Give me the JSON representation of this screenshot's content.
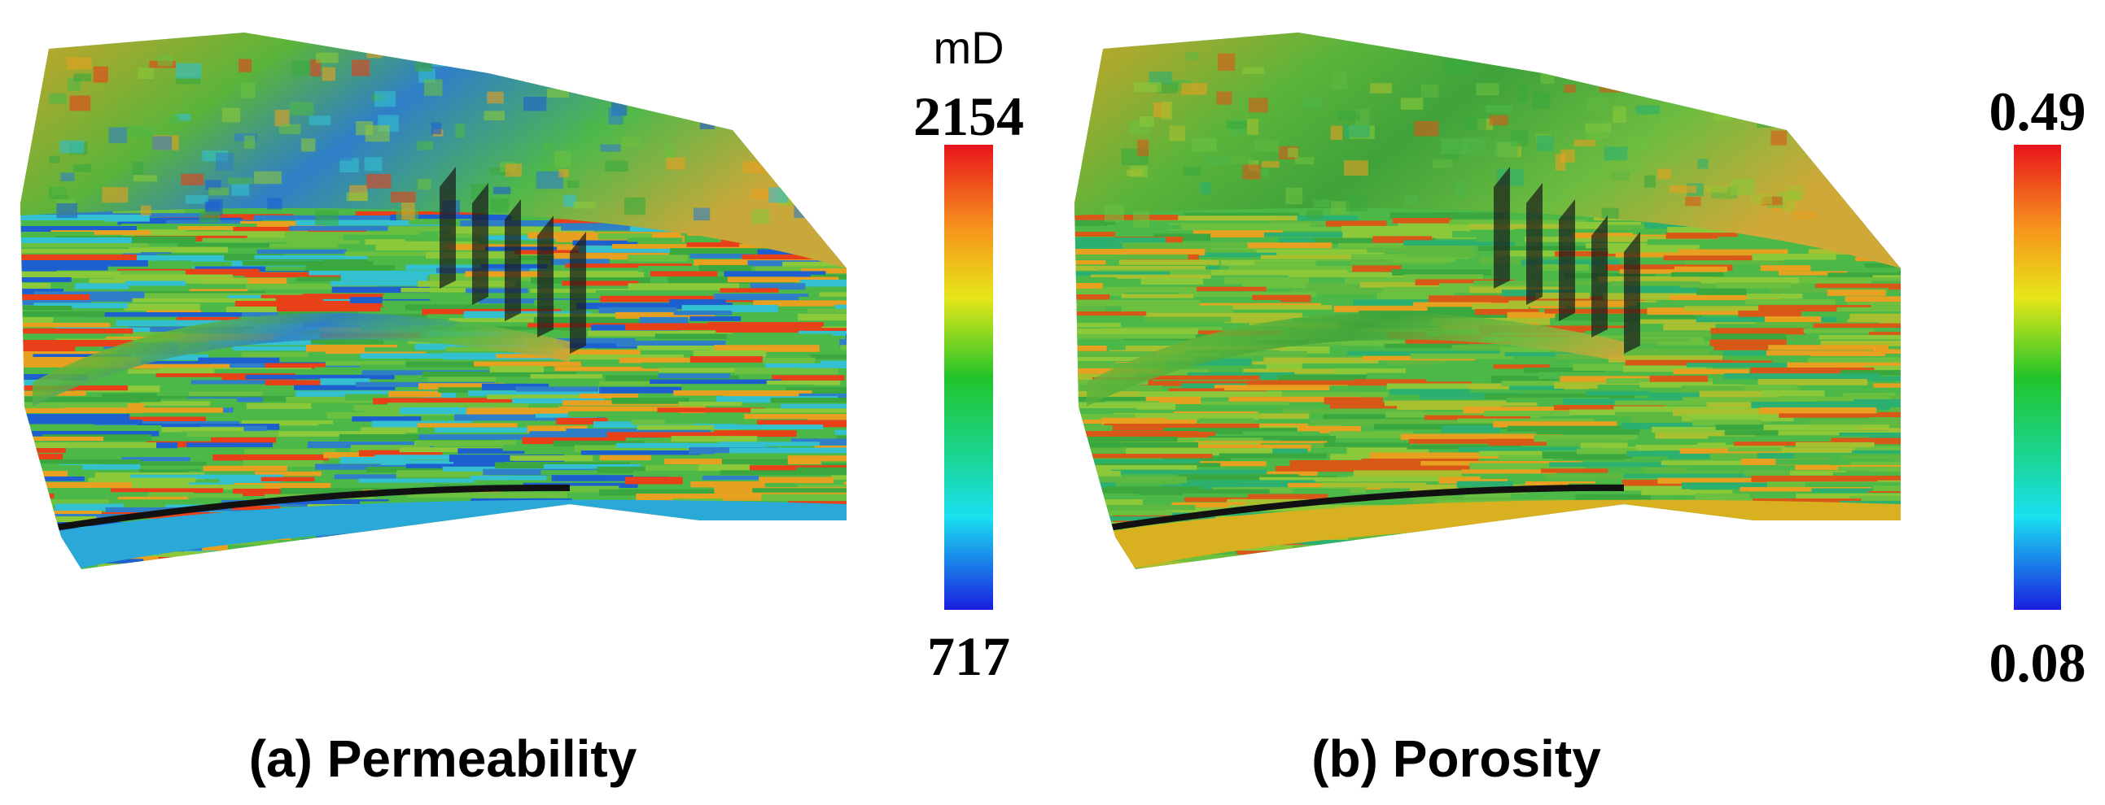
{
  "panels": [
    {
      "caption": "(a) Permeability",
      "colorbar": {
        "unit": "mD",
        "max": 2154,
        "min": 717
      }
    },
    {
      "caption": "(b) Porosity",
      "colorbar": {
        "max": 0.49,
        "min": 0.08
      }
    }
  ]
}
